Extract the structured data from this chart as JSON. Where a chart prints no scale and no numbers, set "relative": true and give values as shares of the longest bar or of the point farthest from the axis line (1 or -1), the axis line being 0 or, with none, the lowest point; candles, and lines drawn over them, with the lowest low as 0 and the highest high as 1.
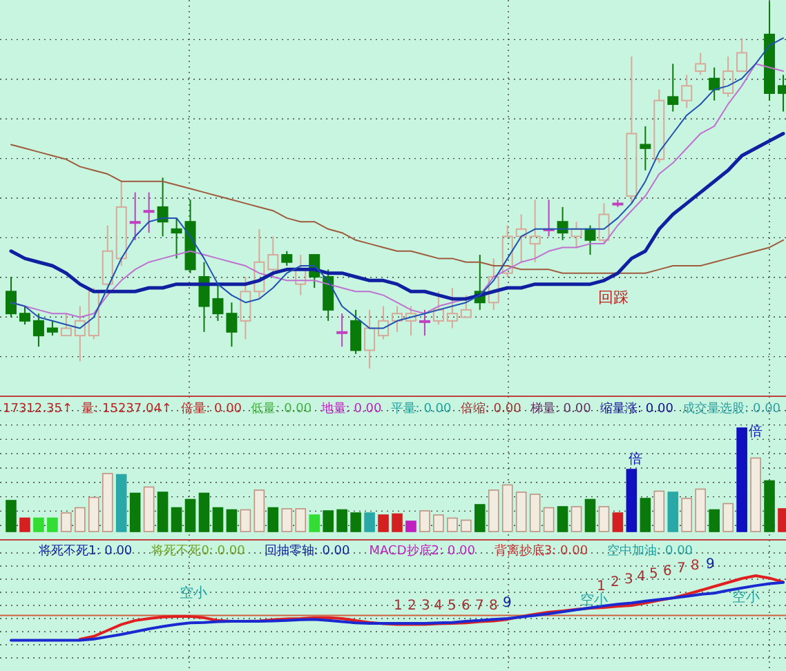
{
  "chart_data": [
    {
      "type": "candlestick",
      "relative": true,
      "grid": true,
      "categories": [
        null,
        null,
        null,
        null,
        null,
        null,
        null,
        null,
        null,
        null,
        null,
        null,
        null,
        null,
        null,
        null,
        null,
        null,
        null,
        null,
        null,
        null,
        null,
        null,
        null,
        null,
        null,
        null,
        null,
        null,
        null,
        null,
        null,
        null,
        null,
        null,
        null,
        null,
        null,
        null,
        null,
        null,
        null,
        null,
        null,
        null,
        null,
        null,
        null,
        null,
        null,
        null,
        null,
        null,
        null,
        null,
        null
      ],
      "ohlc": [
        [
          0.21,
          0.25,
          0.14,
          0.15
        ],
        [
          0.15,
          0.17,
          0.12,
          0.13
        ],
        [
          0.13,
          0.15,
          0.06,
          0.09
        ],
        [
          0.11,
          0.13,
          0.09,
          0.1
        ],
        [
          0.09,
          0.15,
          0.09,
          0.11
        ],
        [
          0.09,
          0.17,
          0.02,
          0.13
        ],
        [
          0.09,
          0.22,
          0.08,
          0.21
        ],
        [
          0.23,
          0.39,
          0.21,
          0.32
        ],
        [
          0.3,
          0.51,
          0.28,
          0.44
        ],
        [
          0.4,
          0.48,
          0.35,
          0.4
        ],
        [
          0.43,
          0.48,
          0.37,
          0.43
        ],
        [
          0.44,
          0.52,
          0.36,
          0.4
        ],
        [
          0.38,
          0.41,
          0.3,
          0.37
        ],
        [
          0.4,
          0.46,
          0.26,
          0.27
        ],
        [
          0.25,
          0.29,
          0.1,
          0.17
        ],
        [
          0.19,
          0.23,
          0.13,
          0.15
        ],
        [
          0.15,
          0.18,
          0.06,
          0.1
        ],
        [
          0.13,
          0.25,
          0.08,
          0.21
        ],
        [
          0.21,
          0.38,
          0.19,
          0.29
        ],
        [
          0.27,
          0.36,
          0.25,
          0.31
        ],
        [
          0.31,
          0.32,
          0.28,
          0.29
        ],
        [
          0.23,
          0.31,
          0.2,
          0.27
        ],
        [
          0.31,
          0.31,
          0.22,
          0.25
        ],
        [
          0.25,
          0.27,
          0.13,
          0.16
        ],
        [
          0.1,
          0.15,
          0.06,
          0.1
        ],
        [
          0.13,
          0.16,
          0.04,
          0.05
        ],
        [
          0.05,
          0.16,
          0.0,
          0.11
        ],
        [
          0.09,
          0.17,
          0.08,
          0.13
        ],
        [
          0.13,
          0.17,
          0.1,
          0.15
        ],
        [
          0.13,
          0.17,
          0.09,
          0.15
        ],
        [
          0.13,
          0.16,
          0.09,
          0.13
        ],
        [
          0.13,
          0.21,
          0.12,
          0.16
        ],
        [
          0.13,
          0.22,
          0.11,
          0.15
        ],
        [
          0.14,
          0.2,
          0.14,
          0.16
        ],
        [
          0.21,
          0.31,
          0.16,
          0.18
        ],
        [
          0.18,
          0.3,
          0.16,
          0.25
        ],
        [
          0.26,
          0.39,
          0.25,
          0.36
        ],
        [
          0.36,
          0.42,
          0.29,
          0.38
        ],
        [
          0.34,
          0.46,
          0.29,
          0.36
        ],
        [
          0.38,
          0.46,
          0.36,
          0.38
        ],
        [
          0.4,
          0.44,
          0.35,
          0.37
        ],
        [
          0.36,
          0.4,
          0.33,
          0.38
        ],
        [
          0.38,
          0.39,
          0.31,
          0.35
        ],
        [
          0.35,
          0.45,
          0.34,
          0.42
        ],
        [
          0.45,
          0.46,
          0.44,
          0.45
        ],
        [
          0.47,
          0.85,
          0.45,
          0.64
        ],
        [
          0.61,
          0.66,
          0.54,
          0.6
        ],
        [
          0.57,
          0.76,
          0.56,
          0.73
        ],
        [
          0.74,
          0.83,
          0.7,
          0.72
        ],
        [
          0.73,
          0.8,
          0.71,
          0.77
        ],
        [
          0.81,
          0.86,
          0.8,
          0.83
        ],
        [
          0.79,
          0.82,
          0.73,
          0.76
        ],
        [
          0.75,
          0.85,
          0.74,
          0.81
        ],
        [
          0.81,
          0.9,
          0.81,
          0.86
        ],
        null,
        [
          0.91,
          1.0,
          0.73,
          0.75
        ],
        [
          0.77,
          0.8,
          0.7,
          0.75
        ]
      ],
      "colors": [
        "#0a7a0a",
        "#0a7a0a",
        "#0a7a0a",
        "#0a7a0a",
        "#d8a898",
        "#d8a898",
        "#d8a898",
        "#d8a898",
        "#d8a898",
        "#c040c0",
        "#c040c0",
        "#0a7a0a",
        "#0a7a0a",
        "#0a7a0a",
        "#0a7a0a",
        "#0a7a0a",
        "#0a7a0a",
        "#d8a898",
        "#d8a898",
        "#d8a898",
        "#0a7a0a",
        "#d8a898",
        "#0a7a0a",
        "#0a7a0a",
        "#c040c0",
        "#0a7a0a",
        "#d8a898",
        "#d8a898",
        "#d8a898",
        "#d8a898",
        "#c040c0",
        "#d8a898",
        "#d8a898",
        "#d8a898",
        "#0a7a0a",
        "#d8a898",
        "#d8a898",
        "#d8a898",
        "#d8a898",
        "#c040c0",
        "#0a7a0a",
        "#d8a898",
        "#0a7a0a",
        "#d8a898",
        "#c040c0",
        "#d8a898",
        "#0a7a0a",
        "#d8a898",
        "#0a7a0a",
        "#d8a898",
        "#d8a898",
        "#0a7a0a",
        "#d8a898",
        "#d8a898",
        null,
        "#0a7a0a",
        "#0a7a0a"
      ],
      "series": [
        {
          "type": "line",
          "color": "#a05a3c",
          "values": [
            0.61,
            0.6,
            0.59,
            0.58,
            0.57,
            0.55,
            0.54,
            0.53,
            0.51,
            0.51,
            0.51,
            0.51,
            0.5,
            0.49,
            0.48,
            0.47,
            0.46,
            0.45,
            0.44,
            0.43,
            0.41,
            0.4,
            0.4,
            0.38,
            0.37,
            0.35,
            0.34,
            0.33,
            0.32,
            0.32,
            0.31,
            0.3,
            0.3,
            0.29,
            0.29,
            0.28,
            0.28,
            0.27,
            0.27,
            0.27,
            0.26,
            0.26,
            0.26,
            0.26,
            0.26,
            0.26,
            0.26,
            0.27,
            0.28,
            0.28,
            0.28,
            0.29,
            0.3,
            0.31,
            0.32,
            0.33,
            0.35
          ]
        },
        {
          "type": "line",
          "color": "#c070d0",
          "values": [
            0.18,
            0.17,
            0.16,
            0.15,
            0.15,
            0.14,
            0.15,
            0.2,
            0.24,
            0.27,
            0.29,
            0.3,
            0.31,
            0.32,
            0.31,
            0.3,
            0.29,
            0.28,
            0.26,
            0.25,
            0.24,
            0.24,
            0.24,
            0.23,
            0.22,
            0.21,
            0.21,
            0.2,
            0.18,
            0.16,
            0.15,
            0.17,
            0.18,
            0.19,
            0.2,
            0.25,
            0.27,
            0.29,
            0.3,
            0.32,
            0.33,
            0.33,
            0.34,
            0.34,
            0.39,
            0.43,
            0.47,
            0.53,
            0.56,
            0.6,
            0.64,
            0.66,
            0.72,
            0.77,
            0.83,
            0.82,
            0.81
          ]
        },
        {
          "type": "line",
          "color": "#1020a0",
          "values": [
            0.32,
            0.3,
            0.29,
            0.28,
            0.26,
            0.23,
            0.21,
            0.21,
            0.21,
            0.21,
            0.22,
            0.22,
            0.23,
            0.23,
            0.23,
            0.23,
            0.23,
            0.23,
            0.24,
            0.26,
            0.27,
            0.27,
            0.27,
            0.26,
            0.26,
            0.25,
            0.24,
            0.24,
            0.23,
            0.21,
            0.21,
            0.2,
            0.19,
            0.19,
            0.2,
            0.21,
            0.22,
            0.22,
            0.23,
            0.23,
            0.23,
            0.23,
            0.23,
            0.24,
            0.26,
            0.3,
            0.32,
            0.38,
            0.42,
            0.45,
            0.48,
            0.51,
            0.54,
            0.58,
            0.6,
            0.62,
            0.64
          ]
        },
        {
          "type": "line",
          "color": "#2050b0",
          "values": [
            0.18,
            0.17,
            0.14,
            0.13,
            0.12,
            0.11,
            0.14,
            0.22,
            0.3,
            0.36,
            0.4,
            0.41,
            0.41,
            0.36,
            0.3,
            0.23,
            0.2,
            0.18,
            0.19,
            0.22,
            0.26,
            0.28,
            0.28,
            0.24,
            0.17,
            0.14,
            0.11,
            0.11,
            0.13,
            0.14,
            0.15,
            0.16,
            0.17,
            0.18,
            0.2,
            0.24,
            0.3,
            0.36,
            0.38,
            0.38,
            0.38,
            0.38,
            0.38,
            0.38,
            0.41,
            0.45,
            0.51,
            0.59,
            0.64,
            0.69,
            0.72,
            0.76,
            0.77,
            0.79,
            0.83,
            0.88,
            0.9
          ]
        }
      ],
      "annotations": [
        "回踩"
      ]
    },
    {
      "type": "bar",
      "relative": true,
      "grid": true,
      "categories": [
        null,
        null,
        null,
        null,
        null,
        null,
        null,
        null,
        null,
        null,
        null,
        null,
        null,
        null,
        null,
        null,
        null,
        null,
        null,
        null,
        null,
        null,
        null,
        null,
        null,
        null,
        null,
        null,
        null,
        null,
        null,
        null,
        null,
        null,
        null,
        null,
        null,
        null,
        null,
        null,
        null,
        null,
        null,
        null,
        null,
        null,
        null,
        null,
        null,
        null,
        null,
        null,
        null,
        null,
        null,
        null,
        null
      ],
      "values": [
        0.3,
        0.13,
        0.13,
        0.13,
        0.18,
        0.23,
        0.33,
        0.56,
        0.55,
        0.37,
        0.43,
        0.38,
        0.23,
        0.31,
        0.37,
        0.23,
        0.21,
        0.21,
        0.4,
        0.23,
        0.22,
        0.22,
        0.16,
        0.2,
        0.21,
        0.18,
        0.18,
        0.16,
        0.17,
        0.1,
        0.2,
        0.16,
        0.13,
        0.11,
        0.26,
        0.4,
        0.45,
        0.38,
        0.36,
        0.23,
        0.24,
        0.24,
        0.31,
        0.24,
        0.18,
        0.6,
        0.32,
        0.39,
        0.38,
        0.32,
        0.41,
        0.21,
        0.27,
        1.0,
        0.71,
        0.49,
        0.22
      ],
      "colors": [
        "#0a7a0a",
        "#d42020",
        "#33dd33",
        "#33dd33",
        "#f2ece0",
        "#f2ece0",
        "#f2ece0",
        "#f2ece0",
        "#2aa8a8",
        "#0a7a0a",
        "#f2ece0",
        "#0a7a0a",
        "#0a7a0a",
        "#0a7a0a",
        "#0a7a0a",
        "#0a7a0a",
        "#0a7a0a",
        "#f2ece0",
        "#f2ece0",
        "#0a7a0a",
        "#f2ece0",
        "#f2ece0",
        "#33dd33",
        "#0a7a0a",
        "#0a7a0a",
        "#0a7a0a",
        "#2aa8a8",
        "#d42020",
        "#d42020",
        "#c020c0",
        "#f2ece0",
        "#f2ece0",
        "#f2ece0",
        "#f2ece0",
        "#0a7a0a",
        "#f2ece0",
        "#f2ece0",
        "#f2ece0",
        "#f2ece0",
        "#f2ece0",
        "#0a7a0a",
        "#f2ece0",
        "#0a7a0a",
        "#f2ece0",
        "#d42020",
        "#1010c0",
        "#0a7a0a",
        "#f2ece0",
        "#2aa8a8",
        "#f2ece0",
        "#f2ece0",
        "#0a7a0a",
        "#f2ece0",
        "#1010c0",
        "#f2ece0",
        "#0a7a0a",
        "#d42020"
      ],
      "annotations": [
        "17312.35↑",
        "量: 15237.04↑",
        "倍量: 0.00",
        "低量: 0.00",
        "地量: 0.00",
        "平量: 0.00",
        "倍缩: 0.00",
        "梯量: 0.00",
        "缩量涨: 0.00",
        "成交量选股: 0.00",
        "倍",
        "倍"
      ]
    },
    {
      "type": "line",
      "relative": true,
      "grid": true,
      "categories": [
        null,
        null,
        null,
        null,
        null,
        null,
        null,
        null,
        null,
        null,
        null,
        null,
        null,
        null,
        null,
        null,
        null,
        null,
        null,
        null,
        null,
        null,
        null,
        null,
        null,
        null,
        null,
        null,
        null,
        null,
        null,
        null,
        null,
        null,
        null,
        null,
        null,
        null,
        null,
        null,
        null,
        null,
        null,
        null,
        null,
        null,
        null,
        null,
        null,
        null,
        null,
        null,
        null,
        null,
        null,
        null,
        null
      ],
      "series": [
        {
          "color": "#e02020",
          "values": [
            null,
            null,
            null,
            null,
            null,
            -0.6,
            -0.53,
            -0.38,
            -0.23,
            -0.13,
            -0.08,
            -0.04,
            -0.03,
            -0.03,
            -0.06,
            -0.13,
            -0.15,
            -0.15,
            -0.14,
            -0.11,
            -0.09,
            -0.08,
            -0.06,
            -0.06,
            -0.08,
            -0.13,
            -0.18,
            -0.21,
            -0.23,
            -0.23,
            -0.23,
            -0.21,
            -0.2,
            -0.19,
            -0.16,
            -0.14,
            -0.1,
            -0.03,
            0.03,
            0.08,
            0.11,
            0.15,
            0.18,
            0.2,
            0.23,
            0.25,
            0.31,
            0.38,
            0.44,
            0.53,
            0.63,
            0.73,
            0.83,
            0.93,
            1.0,
            0.94,
            0.84
          ]
        },
        {
          "color": "#1a2ad0",
          "values": [
            -0.63,
            -0.63,
            -0.63,
            -0.63,
            -0.63,
            -0.63,
            -0.6,
            -0.54,
            -0.48,
            -0.41,
            -0.34,
            -0.28,
            -0.23,
            -0.19,
            -0.18,
            -0.16,
            -0.15,
            -0.15,
            -0.15,
            -0.14,
            -0.13,
            -0.11,
            -0.1,
            -0.13,
            -0.16,
            -0.19,
            -0.2,
            -0.2,
            -0.2,
            -0.2,
            -0.2,
            -0.19,
            -0.18,
            -0.15,
            -0.13,
            -0.1,
            -0.08,
            -0.04,
            0,
            0.04,
            0.09,
            0.14,
            0.19,
            0.24,
            0.28,
            0.31,
            0.36,
            0.4,
            0.44,
            0.48,
            0.53,
            0.56,
            0.63,
            0.69,
            0.75,
            0.8,
            0.83
          ]
        }
      ],
      "ref_lines": [
        {
          "axis": "y",
          "value": 0,
          "color": "#d06040"
        }
      ],
      "annotations": [
        "将死不死1: 0.00",
        "将死不死0: 0.00",
        "回抽零轴: 0.00",
        "MACD抄底2: 0.00",
        "背离抄底3: 0.00",
        "空中加油: 0.00",
        "1",
        "2",
        "3",
        "4",
        "5",
        "6",
        "7",
        "8",
        "9",
        "1",
        "2",
        "3",
        "4",
        "5",
        "6",
        "7",
        "8",
        "9",
        "空小",
        "空小",
        "空小"
      ]
    }
  ]
}
